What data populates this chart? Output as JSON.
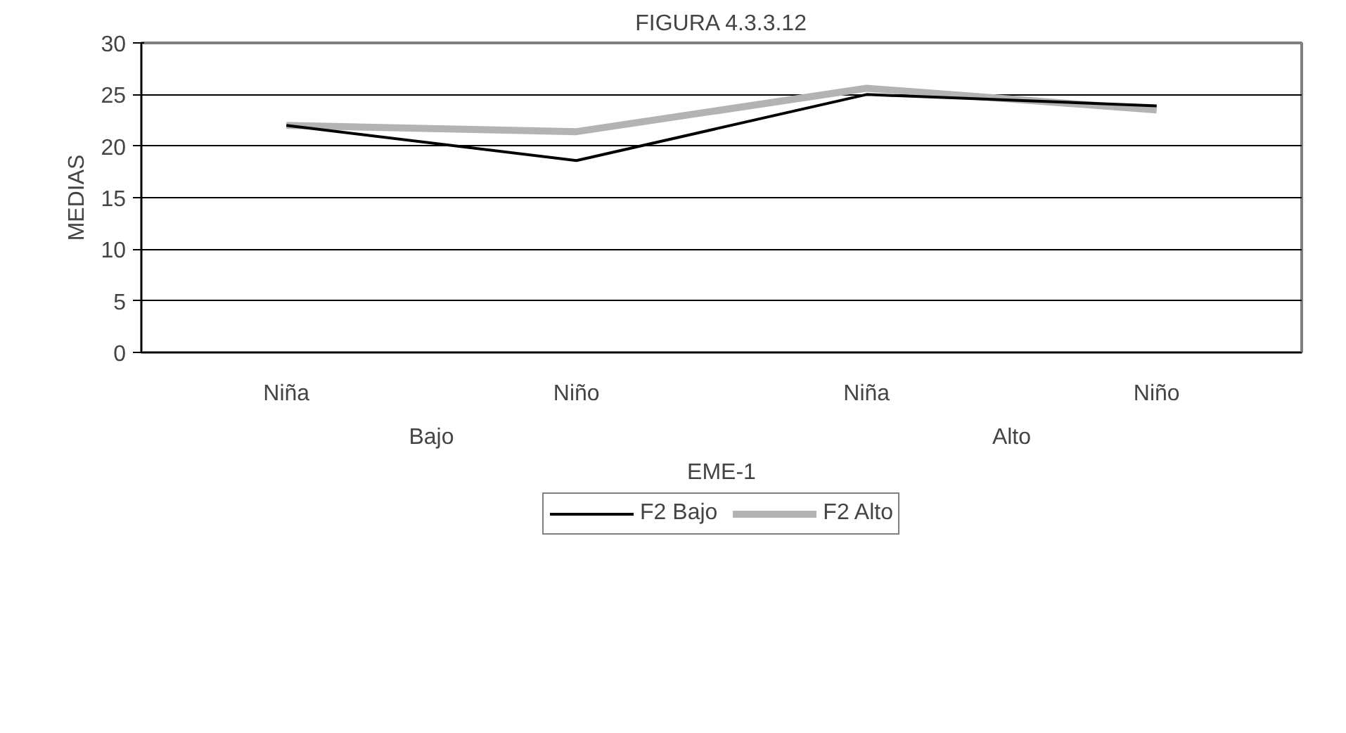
{
  "chart_data": {
    "type": "line",
    "title": "FIGURA 4.3.3.12",
    "ylabel": "MEDIAS",
    "xlabel": "EME-1",
    "categories": [
      "Niña",
      "Niño",
      "Niña",
      "Niño"
    ],
    "annotations": [
      "Bajo",
      "Alto"
    ],
    "series": [
      {
        "name": "F2 Bajo",
        "color": "#000000",
        "values": [
          22.0,
          18.6,
          25.0,
          23.9
        ]
      },
      {
        "name": "F2 Alto",
        "color": "#b3b3b3",
        "values": [
          22.0,
          21.4,
          25.6,
          23.5
        ]
      }
    ],
    "ylim": [
      0,
      30
    ],
    "yticks": [
      0,
      5,
      10,
      15,
      20,
      25,
      30
    ],
    "grid": "y",
    "legend": "bottom",
    "line_style": "solid",
    "marker": "none"
  }
}
